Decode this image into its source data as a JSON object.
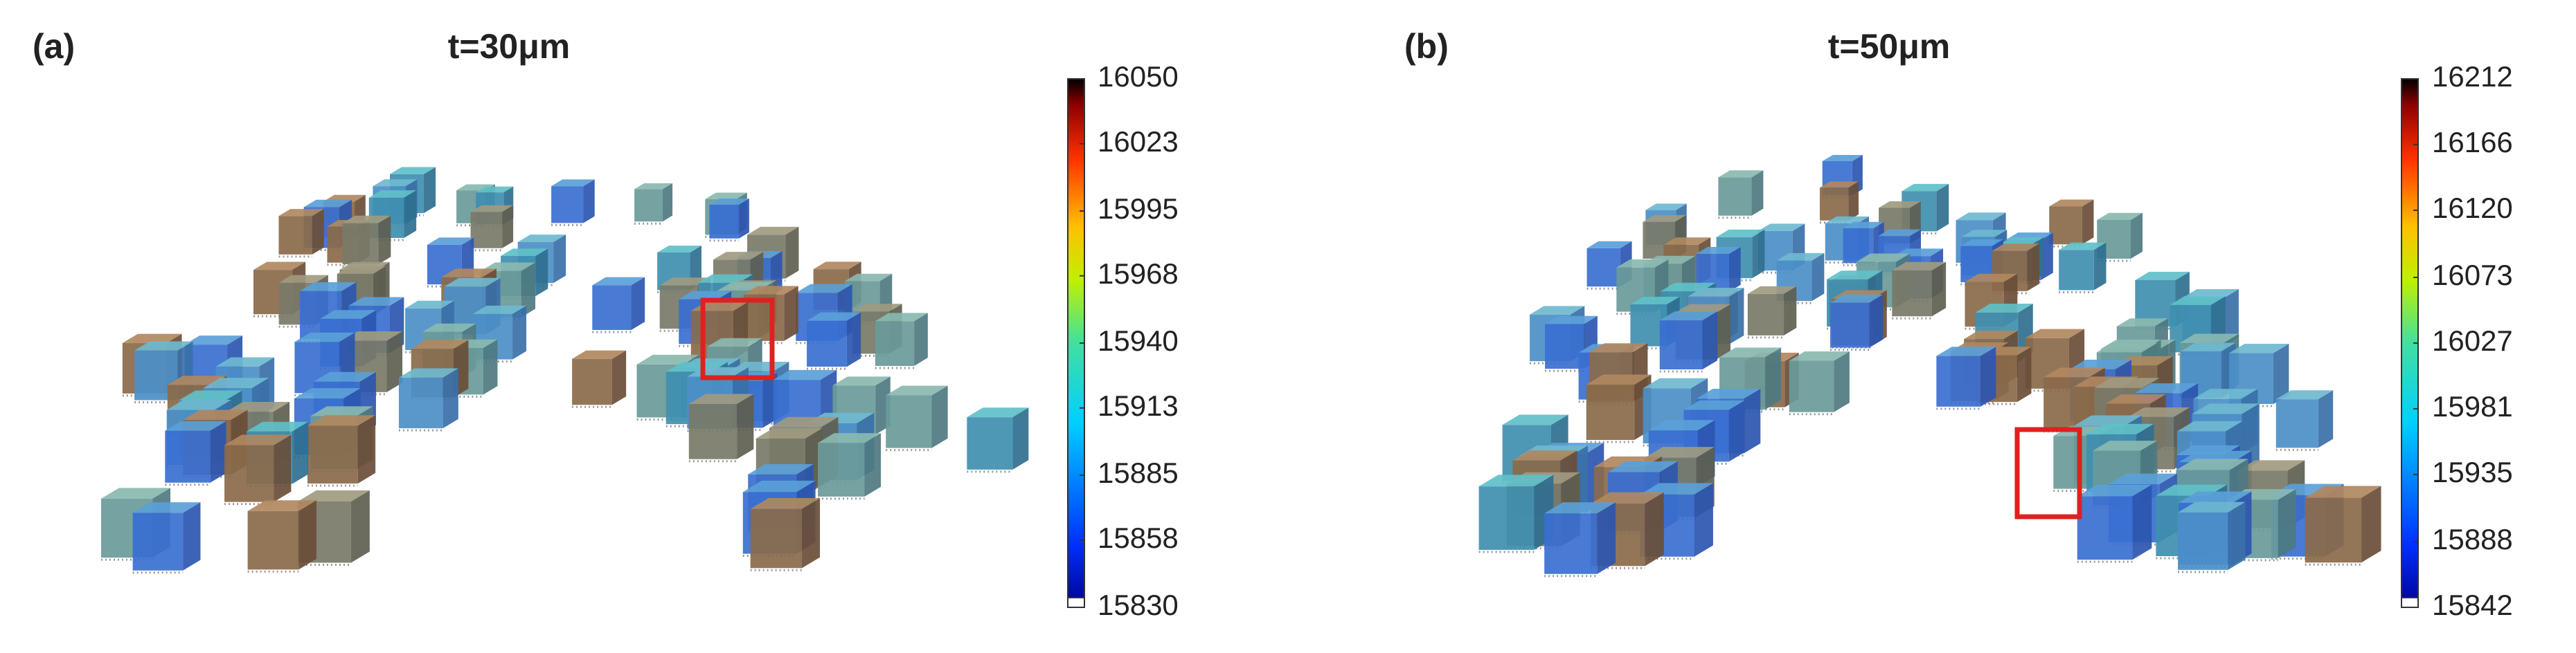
{
  "panels": [
    {
      "label": "(a)",
      "title": "t=30μm",
      "colorbar": {
        "lim": [
          15830,
          16050
        ],
        "ticks": [
          15830,
          15858,
          15885,
          15913,
          15940,
          15968,
          15995,
          16023,
          16050
        ]
      }
    },
    {
      "label": "(b)",
      "title": "t=50μm",
      "colorbar": {
        "lim": [
          15842,
          16212
        ],
        "ticks": [
          15842,
          15888,
          15935,
          15981,
          16027,
          16073,
          16120,
          16166,
          16212
        ]
      }
    }
  ]
}
